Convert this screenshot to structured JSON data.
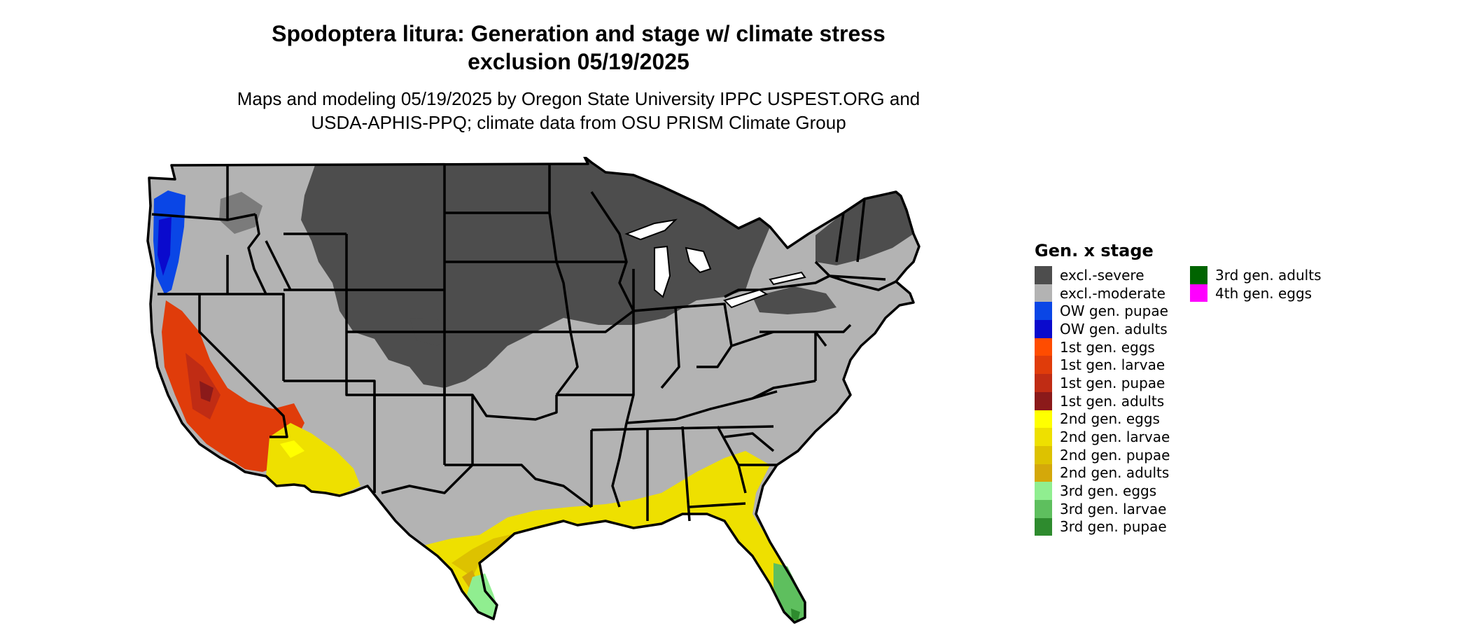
{
  "title": {
    "line1": "Spodoptera litura: Generation and stage w/ climate stress",
    "line2": "exclusion 05/19/2025"
  },
  "subtitle": {
    "line1": "Maps and modeling 05/19/2025 by Oregon State University IPPC USPEST.ORG and",
    "line2": "USDA-APHIS-PPQ; climate data from OSU PRISM Climate Group"
  },
  "legend": {
    "title": "Gen. x stage",
    "items": [
      {
        "label": "excl.-severe",
        "color": "#4d4d4d"
      },
      {
        "label": "excl.-moderate",
        "color": "#b3b3b3"
      },
      {
        "label": "OW gen. pupae",
        "color": "#0a46e6"
      },
      {
        "label": "OW gen. adults",
        "color": "#0a0acd"
      },
      {
        "label": "1st gen. eggs",
        "color": "#ff4c00"
      },
      {
        "label": "1st gen. larvae",
        "color": "#e03c0a"
      },
      {
        "label": "1st gen. pupae",
        "color": "#c02c14"
      },
      {
        "label": "1st gen. adults",
        "color": "#8b1a1a"
      },
      {
        "label": "2nd gen. eggs",
        "color": "#ffff00"
      },
      {
        "label": "2nd gen. larvae",
        "color": "#eee000"
      },
      {
        "label": "2nd gen. pupae",
        "color": "#ddc200"
      },
      {
        "label": "2nd gen. adults",
        "color": "#d4a80a"
      },
      {
        "label": "3rd gen. eggs",
        "color": "#90ee90"
      },
      {
        "label": "3rd gen. larvae",
        "color": "#5ebf5e"
      },
      {
        "label": "3rd gen. pupae",
        "color": "#2e8b2e"
      },
      {
        "label": "3rd gen. adults",
        "color": "#006400"
      },
      {
        "label": "4th gen. eggs",
        "color": "#ff00ff"
      }
    ]
  }
}
